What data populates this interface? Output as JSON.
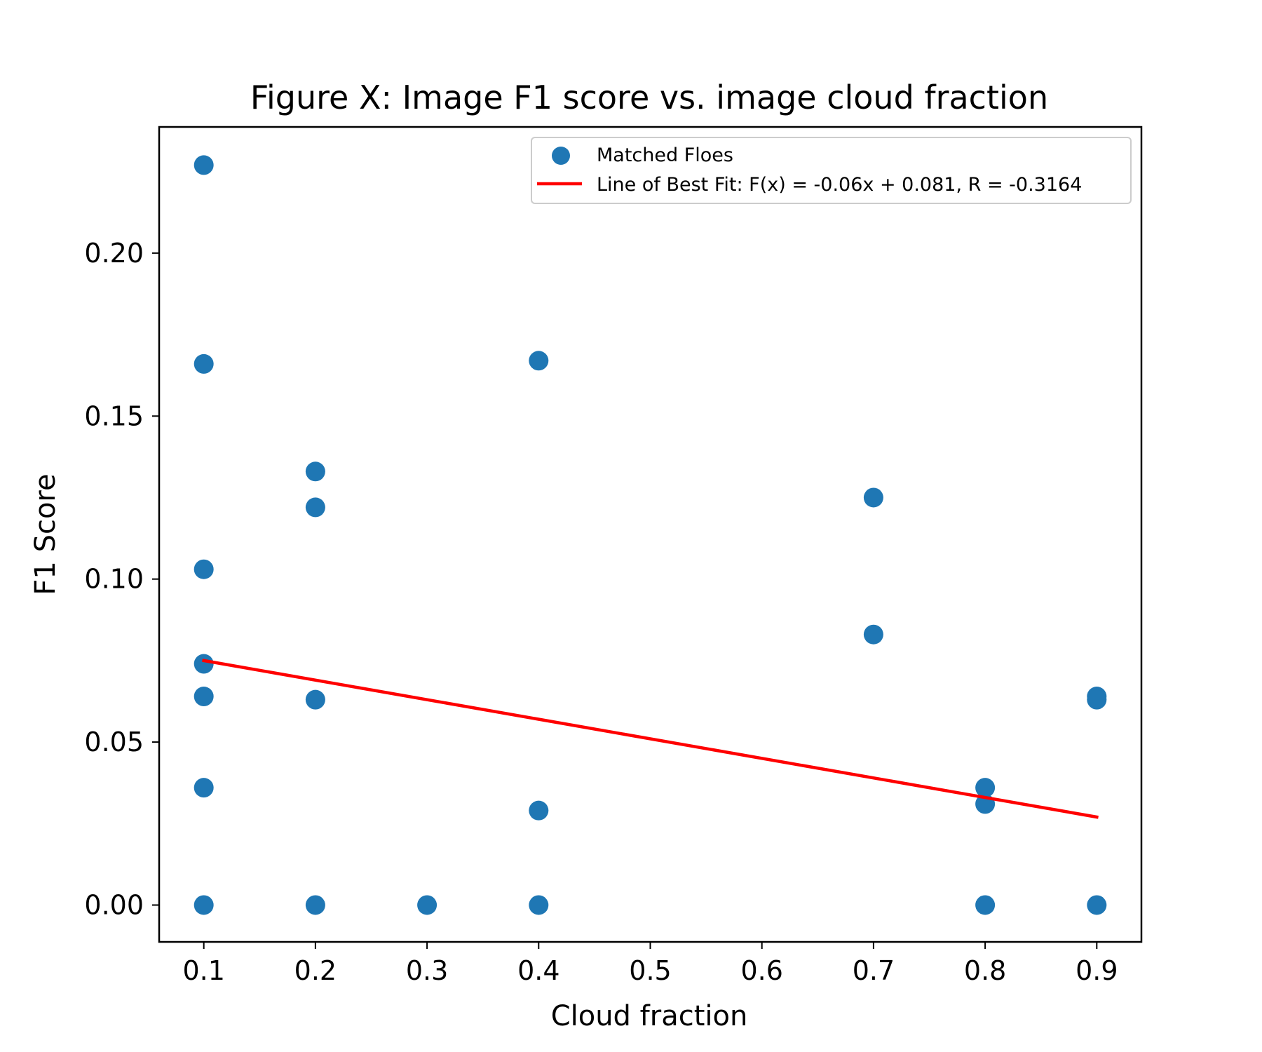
{
  "chart_data": {
    "type": "scatter",
    "title": "Figure X: Image F1 score vs. image cloud fraction",
    "xlabel": "Cloud fraction",
    "ylabel": "F1 Score",
    "xlim": [
      0.06,
      0.94
    ],
    "ylim": [
      -0.0113,
      0.2387
    ],
    "xticks": [
      0.1,
      0.2,
      0.3,
      0.4,
      0.5,
      0.6,
      0.7,
      0.8,
      0.9
    ],
    "xtick_labels": [
      "0.1",
      "0.2",
      "0.3",
      "0.4",
      "0.5",
      "0.6",
      "0.7",
      "0.8",
      "0.9"
    ],
    "yticks": [
      0.0,
      0.05,
      0.1,
      0.15,
      0.2
    ],
    "ytick_labels": [
      "0.00",
      "0.05",
      "0.10",
      "0.15",
      "0.20"
    ],
    "grid": false,
    "legend_position": "top-right",
    "series": [
      {
        "name": "Matched Floes",
        "kind": "scatter",
        "color": "#1f77b4",
        "points": [
          {
            "x": 0.1,
            "y": 0.227
          },
          {
            "x": 0.1,
            "y": 0.166
          },
          {
            "x": 0.1,
            "y": 0.103
          },
          {
            "x": 0.1,
            "y": 0.074
          },
          {
            "x": 0.1,
            "y": 0.064
          },
          {
            "x": 0.1,
            "y": 0.036
          },
          {
            "x": 0.1,
            "y": 0.0
          },
          {
            "x": 0.2,
            "y": 0.133
          },
          {
            "x": 0.2,
            "y": 0.122
          },
          {
            "x": 0.2,
            "y": 0.063
          },
          {
            "x": 0.2,
            "y": 0.0
          },
          {
            "x": 0.3,
            "y": 0.0
          },
          {
            "x": 0.4,
            "y": 0.167
          },
          {
            "x": 0.4,
            "y": 0.029
          },
          {
            "x": 0.4,
            "y": 0.0
          },
          {
            "x": 0.7,
            "y": 0.125
          },
          {
            "x": 0.7,
            "y": 0.083
          },
          {
            "x": 0.8,
            "y": 0.036
          },
          {
            "x": 0.8,
            "y": 0.031
          },
          {
            "x": 0.8,
            "y": 0.0
          },
          {
            "x": 0.9,
            "y": 0.064
          },
          {
            "x": 0.9,
            "y": 0.063
          },
          {
            "x": 0.9,
            "y": 0.0
          }
        ]
      },
      {
        "name": "Line of Best Fit: F(x) = -0.06x + 0.081, R = -0.3164",
        "kind": "line",
        "color": "#ff0000",
        "points": [
          {
            "x": 0.1,
            "y": 0.075
          },
          {
            "x": 0.9,
            "y": 0.027
          }
        ]
      }
    ]
  }
}
